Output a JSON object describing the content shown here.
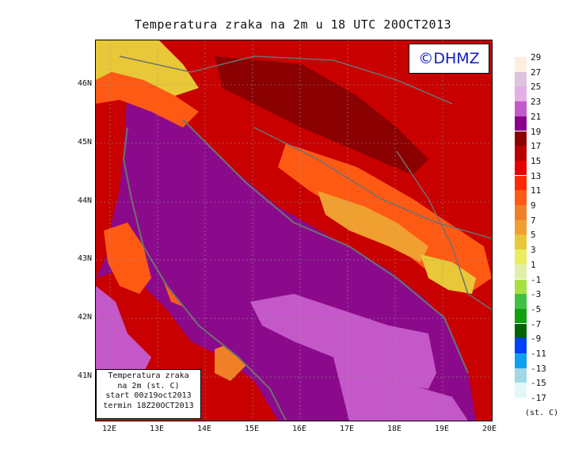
{
  "title": "Temperatura zraka na 2m u 18 UTC 20OCT2013",
  "logo_text": "©DHMZ",
  "info_box": {
    "line1": "Temperatura zraka",
    "line2": "na 2m (st. C)",
    "line3": "start 00z19oct2013",
    "line4": "termin 18Z20OCT2013"
  },
  "lat_labels": [
    "46N",
    "45N",
    "44N",
    "43N",
    "42N",
    "41N"
  ],
  "lon_labels": [
    "12E",
    "13E",
    "14E",
    "15E",
    "16E",
    "17E",
    "18E",
    "19E",
    "20E"
  ],
  "units": "(st. C)",
  "legend": [
    {
      "label": "29",
      "color": "#fdefe0"
    },
    {
      "label": "27",
      "color": "#dcc4dc"
    },
    {
      "label": "25",
      "color": "#e4aee4"
    },
    {
      "label": "23",
      "color": "#c45ac8"
    },
    {
      "label": "21",
      "color": "#8b008b"
    },
    {
      "label": "19",
      "color": "#8b0000"
    },
    {
      "label": "17",
      "color": "#b80000"
    },
    {
      "label": "15",
      "color": "#e20000"
    },
    {
      "label": "13",
      "color": "#ff2a00"
    },
    {
      "label": "11",
      "color": "#ff5a14"
    },
    {
      "label": "9",
      "color": "#f08028"
    },
    {
      "label": "7",
      "color": "#f0a030"
    },
    {
      "label": "5",
      "color": "#e8c838"
    },
    {
      "label": "3",
      "color": "#ecec60"
    },
    {
      "label": "1",
      "color": "#e0f0a8"
    },
    {
      "label": "-1",
      "color": "#a8e040"
    },
    {
      "label": "-3",
      "color": "#40c040"
    },
    {
      "label": "-5",
      "color": "#10a010"
    },
    {
      "label": "-7",
      "color": "#006400"
    },
    {
      "label": "-9",
      "color": "#0040ff"
    },
    {
      "label": "-11",
      "color": "#10a0f0"
    },
    {
      "label": "-13",
      "color": "#a0d8e8"
    },
    {
      "label": "-15",
      "color": "#e0f8f8"
    },
    {
      "label": "-17",
      "color": "#ffffff"
    }
  ],
  "map_colors": {
    "sea": "#8b0a8b",
    "sea_warm": "#c458c8",
    "land_hot": "#8b0000",
    "land_mid": "#e20000",
    "land_orange": "#ff5a14",
    "land_yellow": "#e8c838",
    "coast": "#707070",
    "border": "#707070"
  }
}
